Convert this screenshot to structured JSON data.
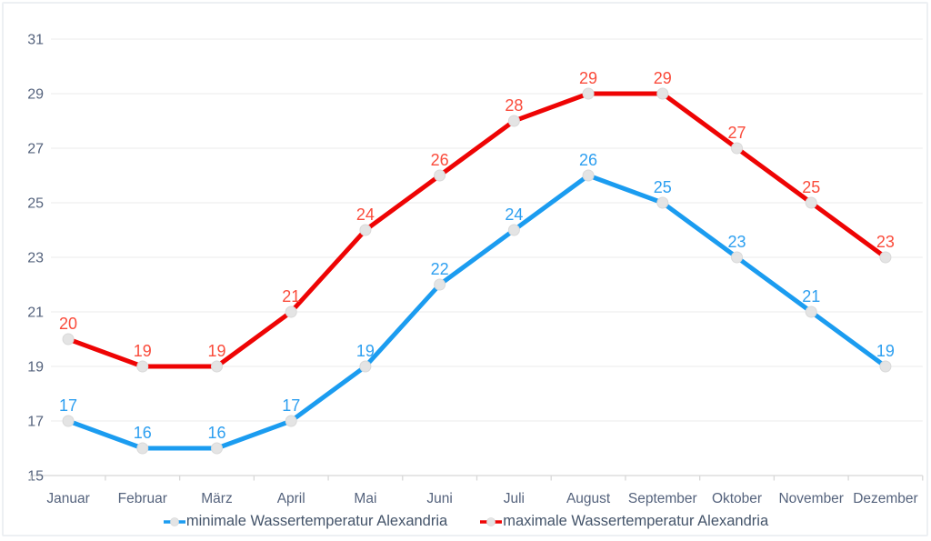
{
  "chart_data": {
    "type": "line",
    "title": "",
    "categories": [
      "Januar",
      "Februar",
      "März",
      "April",
      "Mai",
      "Juni",
      "Juli",
      "August",
      "September",
      "Oktober",
      "November",
      "Dezember"
    ],
    "series": [
      {
        "name": "minimale Wassertemperatur Alexandria",
        "values": [
          17,
          16,
          16,
          17,
          19,
          22,
          24,
          26,
          25,
          23,
          21,
          19
        ],
        "line_color": "#1b9cf0",
        "label_color": "#2d9ff0"
      },
      {
        "name": "maximale Wassertemperatur Alexandria",
        "values": [
          20,
          19,
          19,
          21,
          24,
          26,
          28,
          29,
          29,
          27,
          25,
          23
        ],
        "line_color": "#ee0404",
        "label_color": "#fa4b3b"
      }
    ],
    "ylim": [
      15,
      31
    ],
    "yticks": [
      15,
      17,
      19,
      21,
      23,
      25,
      27,
      29,
      31
    ],
    "grid": true,
    "legend_position": "bottom",
    "show_point_labels": true,
    "colors": {
      "marker_fill": "#e4e4e4",
      "marker_stroke": "#d9d9d9",
      "gridline": "#ebebeb",
      "axis_line": "#d8d8d8",
      "tick": "#d8d8d8",
      "axis_label": "#55637d",
      "legend_text": "#44546a",
      "background": "#ffffff",
      "widget_border": "#edf0f3"
    }
  }
}
